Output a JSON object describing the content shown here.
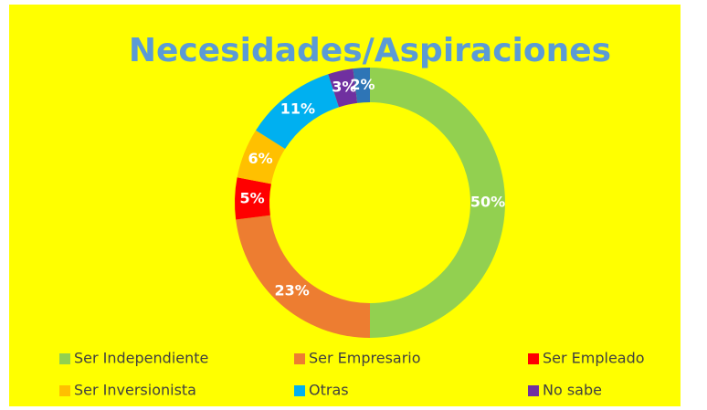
{
  "chart_data": {
    "type": "donut",
    "title": "Necesidades/Aspiraciones",
    "categories": [
      "Ser Independiente",
      "Ser Empresario",
      "Ser Empleado",
      "Ser Inversionista",
      "Otras",
      "No sabe",
      null
    ],
    "values": [
      50,
      23,
      5,
      6,
      11,
      3,
      2
    ],
    "value_labels": [
      "50%",
      "23%",
      "5%",
      "6%",
      "11%",
      "3%",
      "2%"
    ],
    "colors": [
      "#92d050",
      "#ed7d31",
      "#ff0000",
      "#ffc000",
      "#00b0f0",
      "#7030a0",
      "#2e75b6"
    ],
    "legend": "bottom"
  }
}
